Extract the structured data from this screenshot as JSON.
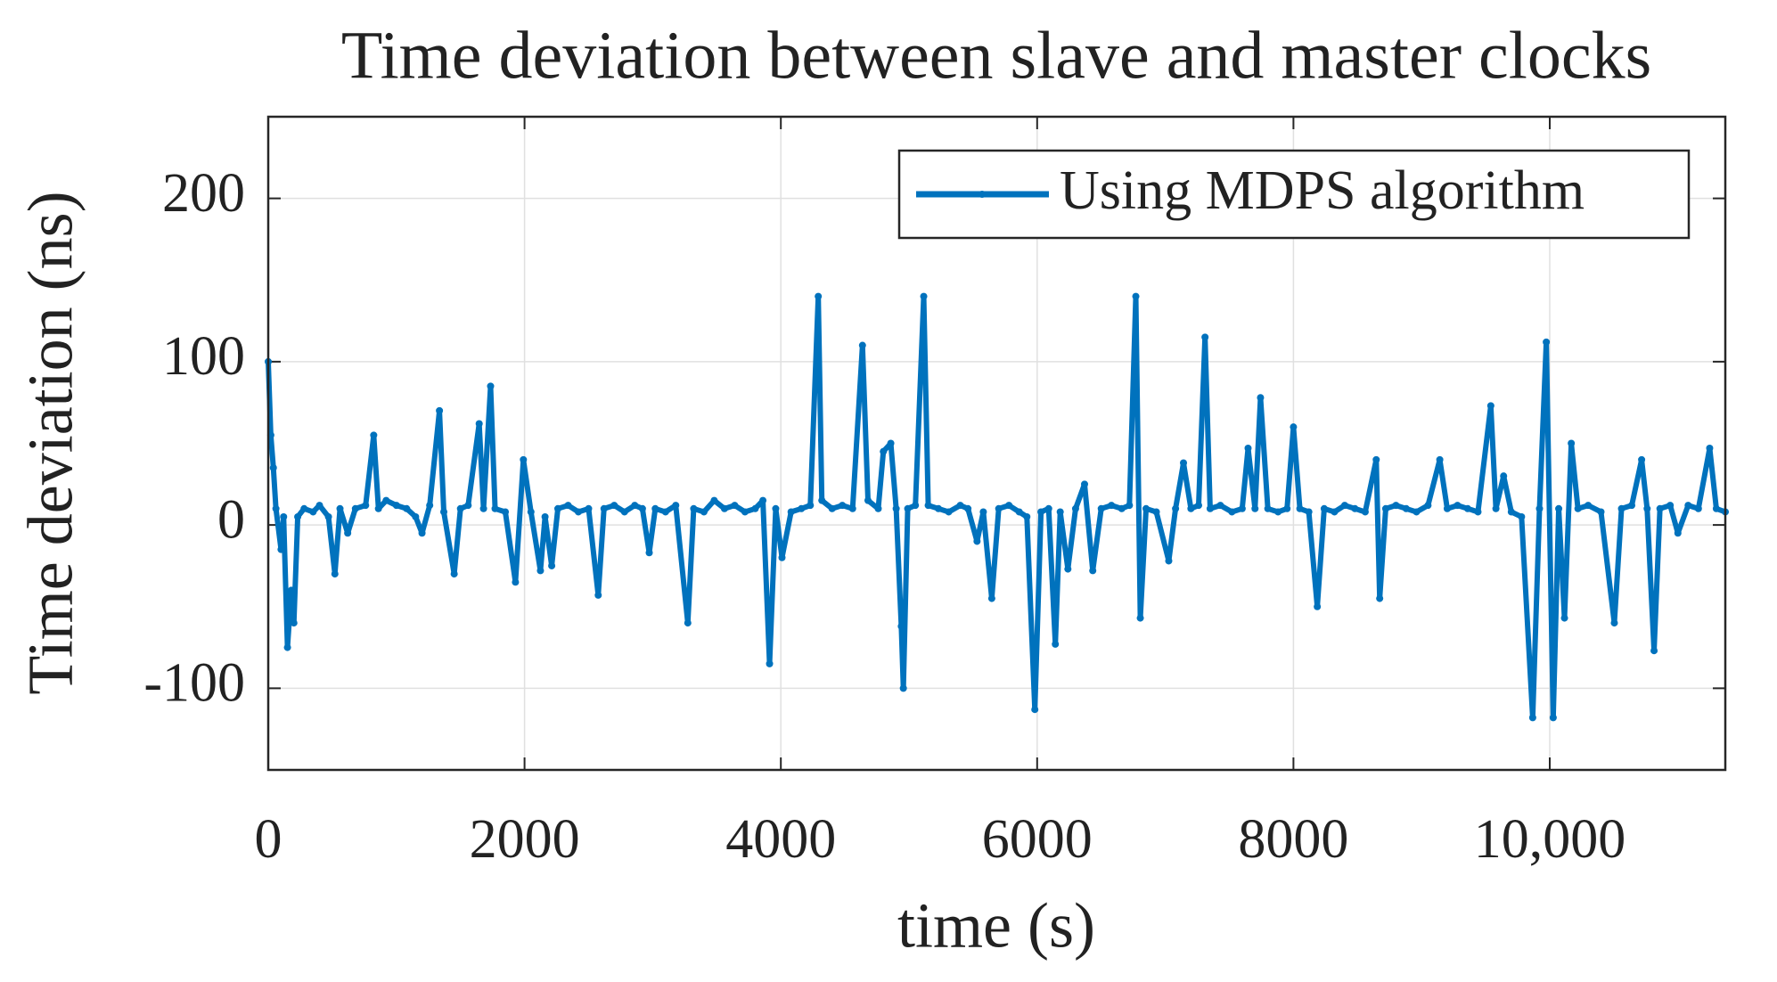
{
  "chart_data": {
    "type": "line",
    "title": "Time deviation between slave and master clocks",
    "xlabel": "time (s)",
    "ylabel": "Time deviation (ns)",
    "xlim": [
      0,
      11370
    ],
    "ylim": [
      -150,
      250
    ],
    "xticks": [
      0,
      2000,
      4000,
      6000,
      8000,
      {
        "value": 10000,
        "label": "10,000"
      }
    ],
    "yticks": [
      -100,
      0,
      100,
      200
    ],
    "grid": true,
    "legend": "northeast",
    "series": [
      {
        "name": "Using MDPS algorithm",
        "color": "#0072bd",
        "x": [
          0,
          20,
          40,
          60,
          100,
          120,
          150,
          180,
          200,
          230,
          280,
          350,
          400,
          470,
          520,
          560,
          620,
          680,
          760,
          823,
          860,
          920,
          1000,
          1080,
          1150,
          1200,
          1260,
          1336,
          1370,
          1451,
          1500,
          1560,
          1646,
          1680,
          1735,
          1770,
          1850,
          1929,
          1991,
          2050,
          2124,
          2160,
          2212,
          2260,
          2340,
          2420,
          2500,
          2575,
          2620,
          2700,
          2780,
          2860,
          2920,
          2973,
          3020,
          3100,
          3180,
          3274,
          3320,
          3400,
          3480,
          3560,
          3640,
          3720,
          3800,
          3860,
          3912,
          3960,
          4009,
          4080,
          4160,
          4230,
          4292,
          4320,
          4400,
          4480,
          4560,
          4637,
          4680,
          4760,
          4800,
          4858,
          4900,
          4940,
          4956,
          4990,
          5050,
          5115,
          5150,
          5230,
          5310,
          5400,
          5460,
          5531,
          5580,
          5646,
          5700,
          5780,
          5860,
          5920,
          5982,
          6030,
          6090,
          6142,
          6180,
          6240,
          6300,
          6370,
          6434,
          6500,
          6580,
          6660,
          6720,
          6770,
          6805,
          6850,
          6930,
          7027,
          7080,
          7142,
          7200,
          7260,
          7310,
          7350,
          7430,
          7520,
          7600,
          7646,
          7700,
          7743,
          7800,
          7880,
          7950,
          8000,
          8050,
          8120,
          8186,
          8240,
          8320,
          8400,
          8480,
          8560,
          8646,
          8673,
          8720,
          8800,
          8880,
          8960,
          9050,
          9142,
          9200,
          9280,
          9360,
          9440,
          9540,
          9580,
          9640,
          9700,
          9780,
          9867,
          9920,
          9973,
          10027,
          10070,
          10115,
          10168,
          10220,
          10300,
          10400,
          10504,
          10560,
          10640,
          10717,
          10760,
          10814,
          10860,
          10940,
          11000,
          11080,
          11160,
          11248,
          11300,
          11370
        ],
        "values": [
          100,
          55,
          35,
          10,
          -15,
          5,
          -75,
          -40,
          -60,
          5,
          10,
          8,
          12,
          5,
          -30,
          10,
          -5,
          10,
          12,
          55,
          10,
          15,
          12,
          10,
          5,
          -5,
          12,
          70,
          8,
          -30,
          10,
          12,
          62,
          10,
          85,
          10,
          8,
          -35,
          40,
          8,
          -28,
          5,
          -25,
          10,
          12,
          8,
          10,
          -43,
          10,
          12,
          8,
          12,
          10,
          -17,
          10,
          8,
          12,
          -60,
          10,
          8,
          15,
          10,
          12,
          8,
          10,
          15,
          -85,
          10,
          -20,
          8,
          10,
          12,
          140,
          15,
          10,
          12,
          10,
          110,
          15,
          10,
          45,
          50,
          10,
          -62,
          -100,
          10,
          12,
          140,
          12,
          10,
          8,
          12,
          10,
          -10,
          8,
          -45,
          10,
          12,
          8,
          5,
          -113,
          8,
          10,
          -73,
          8,
          -27,
          10,
          25,
          -28,
          10,
          12,
          10,
          12,
          140,
          -57,
          10,
          8,
          -22,
          10,
          38,
          10,
          12,
          115,
          10,
          12,
          8,
          10,
          47,
          10,
          78,
          10,
          8,
          10,
          60,
          10,
          8,
          -50,
          10,
          8,
          12,
          10,
          8,
          40,
          -45,
          10,
          12,
          10,
          8,
          12,
          40,
          10,
          12,
          10,
          8,
          73,
          10,
          30,
          8,
          5,
          -118,
          10,
          112,
          -118,
          10,
          -57,
          50,
          10,
          12,
          8,
          -60,
          10,
          12,
          40,
          10,
          -77,
          10,
          12,
          -5,
          12,
          10,
          47,
          10,
          8
        ]
      }
    ]
  }
}
